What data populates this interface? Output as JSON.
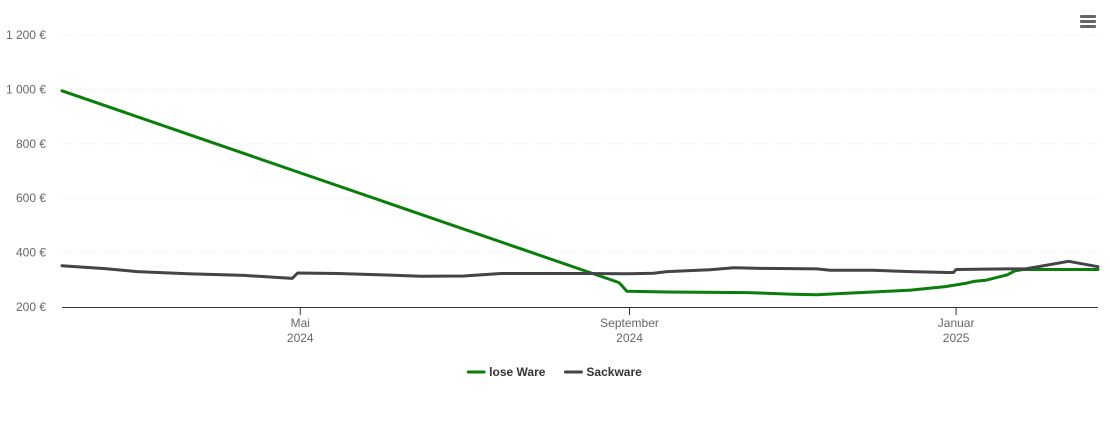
{
  "chart_data": {
    "type": "line",
    "x_ticks": [
      {
        "date": "2024-05-01",
        "month": "Mai",
        "year": "2024"
      },
      {
        "date": "2024-09-01",
        "month": "September",
        "year": "2024"
      },
      {
        "date": "2025-01-01",
        "month": "Januar",
        "year": "2025"
      }
    ],
    "xlim": [
      "2024-02-02",
      "2025-02-23"
    ],
    "ylim": [
      200,
      1200
    ],
    "y_ticks": [
      200,
      400,
      600,
      800,
      1000,
      1200
    ],
    "y_tick_labels": [
      "200 €",
      "400 €",
      "600 €",
      "800 €",
      "1 000 €",
      "1 200 €"
    ],
    "grid": true,
    "legend_position": "bottom-center",
    "series": [
      {
        "name": "lose Ware",
        "color": "#0a7d0a",
        "points": [
          [
            "2024-02-02",
            995
          ],
          [
            "2024-08-28",
            290
          ],
          [
            "2024-08-29",
            280
          ],
          [
            "2024-08-31",
            258
          ],
          [
            "2024-09-15",
            255
          ],
          [
            "2024-10-15",
            253
          ],
          [
            "2024-11-01",
            247
          ],
          [
            "2024-11-10",
            245
          ],
          [
            "2024-11-20",
            250
          ],
          [
            "2024-12-01",
            255
          ],
          [
            "2024-12-15",
            262
          ],
          [
            "2024-12-28",
            275
          ],
          [
            "2025-01-05",
            288
          ],
          [
            "2025-01-08",
            295
          ],
          [
            "2025-01-12",
            298
          ],
          [
            "2025-01-16",
            308
          ],
          [
            "2025-01-20",
            318
          ],
          [
            "2025-01-23",
            333
          ],
          [
            "2025-01-26",
            338
          ],
          [
            "2025-02-23",
            338
          ]
        ]
      },
      {
        "name": "Sackware",
        "color": "#434348",
        "points": [
          [
            "2024-02-02",
            352
          ],
          [
            "2024-02-18",
            341
          ],
          [
            "2024-03-01",
            330
          ],
          [
            "2024-03-20",
            322
          ],
          [
            "2024-04-10",
            316
          ],
          [
            "2024-04-28",
            305
          ],
          [
            "2024-04-30",
            325
          ],
          [
            "2024-05-15",
            323
          ],
          [
            "2024-06-01",
            318
          ],
          [
            "2024-06-15",
            313
          ],
          [
            "2024-07-01",
            314
          ],
          [
            "2024-07-15",
            323
          ],
          [
            "2024-08-15",
            323
          ],
          [
            "2024-08-31",
            322
          ],
          [
            "2024-09-10",
            324
          ],
          [
            "2024-09-15",
            330
          ],
          [
            "2024-10-01",
            337
          ],
          [
            "2024-10-10",
            344
          ],
          [
            "2024-10-20",
            342
          ],
          [
            "2024-11-01",
            341
          ],
          [
            "2024-11-10",
            340
          ],
          [
            "2024-11-15",
            335
          ],
          [
            "2024-12-01",
            335
          ],
          [
            "2024-12-15",
            330
          ],
          [
            "2024-12-29",
            327
          ],
          [
            "2024-12-31",
            327
          ],
          [
            "2025-01-01",
            338
          ],
          [
            "2025-01-20",
            340
          ],
          [
            "2025-01-27",
            340
          ],
          [
            "2025-02-12",
            368
          ],
          [
            "2025-02-23",
            348
          ]
        ]
      }
    ]
  },
  "icons": {
    "menu": "hamburger-menu-icon"
  }
}
